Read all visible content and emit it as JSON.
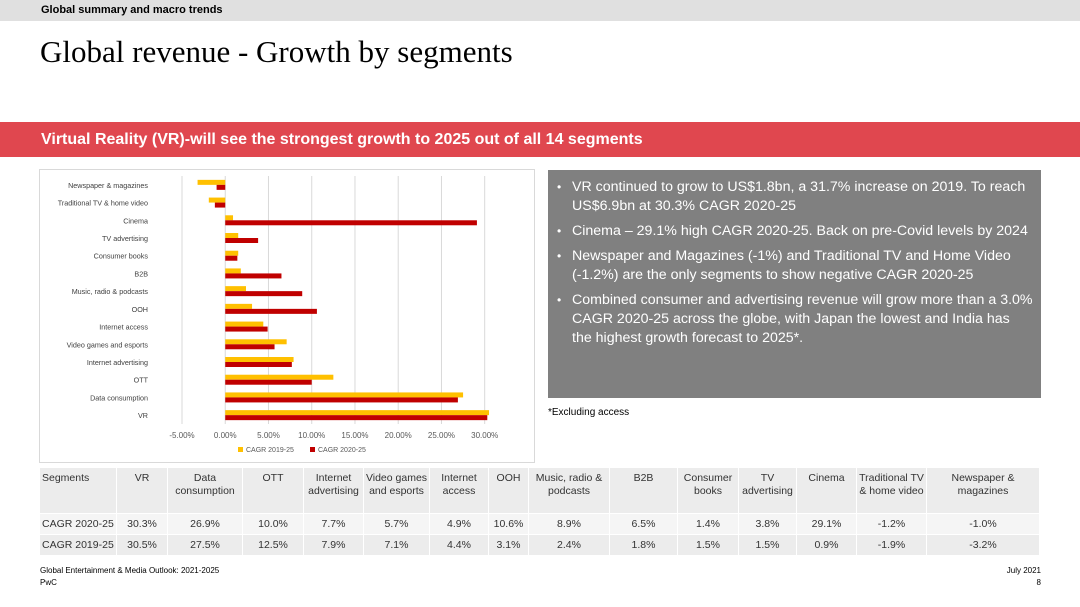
{
  "section": "Global summary and macro trends",
  "title": "Global revenue - Growth by segments",
  "banner": "Virtual Reality (VR)-will see the strongest growth to 2025 out of all 14 segments",
  "colors": {
    "cagr_2019_25": "#ffc000",
    "cagr_2020_25": "#c00000",
    "banner": "#e0474f",
    "notes_bg": "#808080"
  },
  "chart_data": {
    "type": "bar",
    "orientation": "horizontal",
    "categories": [
      "Newspaper & magazines",
      "Traditional TV & home video",
      "Cinema",
      "TV advertising",
      "Consumer books",
      "B2B",
      "Music, radio & podcasts",
      "OOH",
      "Internet access",
      "Video games and esports",
      "Internet advertising",
      "OTT",
      "Data consumption",
      "VR"
    ],
    "series": [
      {
        "name": "CAGR 2019-25",
        "values": [
          -3.2,
          -1.9,
          0.9,
          1.5,
          1.5,
          1.8,
          2.4,
          3.1,
          4.4,
          7.1,
          7.9,
          12.5,
          27.5,
          30.5
        ]
      },
      {
        "name": "CAGR 2020-25",
        "values": [
          -1.0,
          -1.2,
          29.1,
          3.8,
          1.4,
          6.5,
          8.9,
          10.6,
          4.9,
          5.7,
          7.7,
          10.0,
          26.9,
          30.3
        ]
      }
    ],
    "x_ticks": [
      "-5.00%",
      "0.00%",
      "5.00%",
      "10.00%",
      "15.00%",
      "20.00%",
      "25.00%",
      "30.00%"
    ],
    "xlim": [
      -5,
      32
    ],
    "grid": true,
    "legend_position": "bottom"
  },
  "notes": [
    "VR continued to grow to US$1.8bn, a 31.7% increase on 2019. To reach US$6.9bn at 30.3% CAGR 2020-25",
    "Cinema – 29.1% high CAGR 2020-25. Back on pre-Covid levels by 2024",
    "Newspaper and Magazines (-1%) and Traditional TV and Home Video (-1.2%) are the only segments to show negative CAGR 2020-25",
    "Combined consumer and advertising revenue will grow more than a 3.0% CAGR 2020-25 across the globe, with Japan the lowest and India has the highest growth forecast to 2025*."
  ],
  "bullet": "•",
  "excluding_note": "*Excluding access",
  "table": {
    "headers": [
      "Segments",
      "VR",
      "Data consumption",
      "OTT",
      "Internet advertising",
      "Video games and esports",
      "Internet access",
      "OOH",
      "Music, radio & podcasts",
      "B2B",
      "Consumer books",
      "TV advertising",
      "Cinema",
      "Traditional TV & home video",
      "Newspaper & magazines"
    ],
    "rows": [
      [
        "CAGR 2020-25",
        "30.3%",
        "26.9%",
        "10.0%",
        "7.7%",
        "5.7%",
        "4.9%",
        "10.6%",
        "8.9%",
        "6.5%",
        "1.4%",
        "3.8%",
        "29.1%",
        "-1.2%",
        "-1.0%"
      ],
      [
        "CAGR 2019-25",
        "30.5%",
        "27.5%",
        "12.5%",
        "7.9%",
        "7.1%",
        "4.4%",
        "3.1%",
        "2.4%",
        "1.8%",
        "1.5%",
        "1.5%",
        "0.9%",
        "-1.9%",
        "-3.2%"
      ]
    ]
  },
  "footer": {
    "source": "Global Entertainment & Media Outlook: 2021-2025",
    "company": "PwC",
    "date": "July 2021",
    "page": "8"
  }
}
